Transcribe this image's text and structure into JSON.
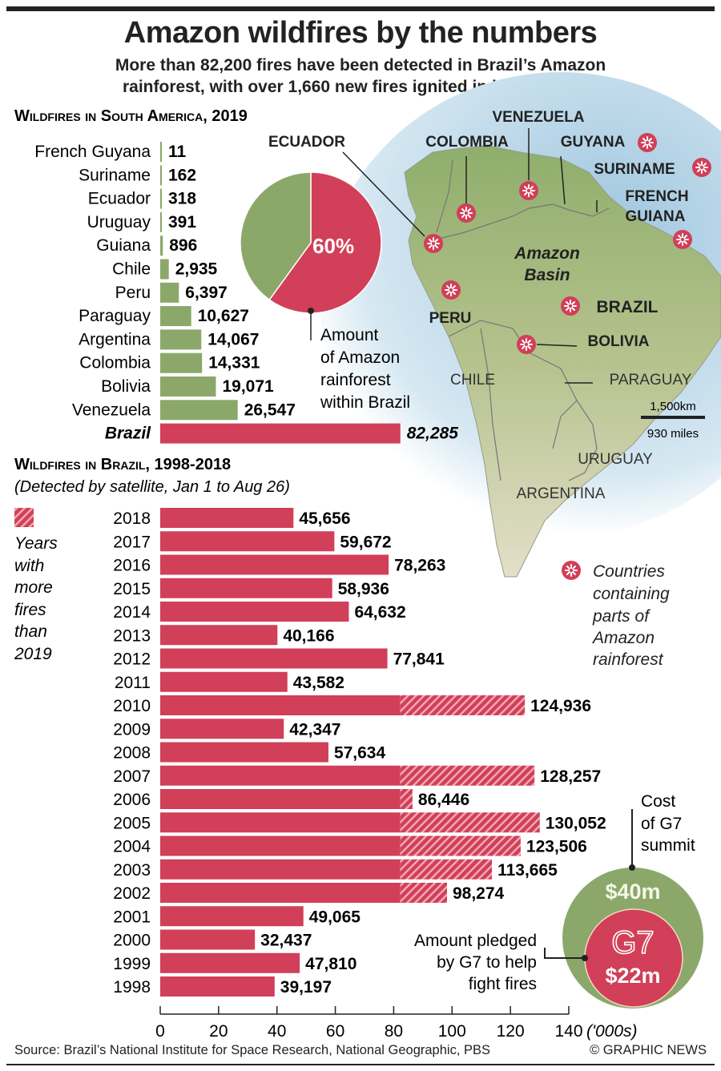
{
  "header": {
    "title": "Amazon wildfires by the numbers",
    "subtitle_line1": "More than 82,200 fires have been detected in Brazil’s Amazon",
    "subtitle_line2": "rainforest, with over 1,660 new fires ignited in just two days"
  },
  "colors": {
    "red": "#d13f58",
    "green": "#8ba86a",
    "ocean": "#bcd9ea",
    "land": "#a9bf84"
  },
  "chart_data": [
    {
      "type": "bar",
      "orientation": "horizontal",
      "title": "Wildfires in South America, 2019",
      "categories": [
        "French Guyana",
        "Suriname",
        "Ecuador",
        "Uruguay",
        "Guiana",
        "Chile",
        "Peru",
        "Paraguay",
        "Argentina",
        "Colombia",
        "Bolivia",
        "Venezuela",
        "Brazil"
      ],
      "values": [
        11,
        162,
        318,
        391,
        896,
        2935,
        6397,
        10627,
        14067,
        14331,
        19071,
        26547,
        82285
      ],
      "labels": [
        "11",
        "162",
        "318",
        "391",
        "896",
        "2,935",
        "6,397",
        "10,627",
        "14,067",
        "14,331",
        "19,071",
        "26,547",
        "82,285"
      ],
      "highlight": "Brazil"
    },
    {
      "type": "pie",
      "slices": [
        {
          "label": "60%",
          "value": 60,
          "color": "#d13f58"
        },
        {
          "label": "",
          "value": 40,
          "color": "#8ba86a"
        }
      ],
      "annotation": [
        "Amount",
        "of Amazon",
        "rainforest",
        "within Brazil"
      ]
    },
    {
      "type": "bar",
      "orientation": "horizontal",
      "title": "Wildfires in Brazil, 1998-2018",
      "subtitle": "(Detected by satellite, Jan 1 to Aug 26)",
      "categories": [
        "2018",
        "2017",
        "2016",
        "2015",
        "2014",
        "2013",
        "2012",
        "2011",
        "2010",
        "2009",
        "2008",
        "2007",
        "2006",
        "2005",
        "2004",
        "2003",
        "2002",
        "2001",
        "2000",
        "1999",
        "1998"
      ],
      "values": [
        45656,
        59672,
        78263,
        58936,
        64632,
        40166,
        77841,
        43582,
        124936,
        42347,
        57634,
        128257,
        86446,
        130052,
        123506,
        113665,
        98274,
        49065,
        32437,
        47810,
        39197
      ],
      "labels": [
        "45,656",
        "59,672",
        "78,263",
        "58,936",
        "64,632",
        "40,166",
        "77,841",
        "43,582",
        "124,936",
        "42,347",
        "57,634",
        "128,257",
        "86,446",
        "130,052",
        "123,506",
        "113,665",
        "98,274",
        "49,065",
        "32,437",
        "47,810",
        "39,197"
      ],
      "hatch_above": 82285,
      "legend": [
        "Years",
        "with",
        "more",
        "fires",
        "than",
        "2019"
      ],
      "x_ticks": [
        "0",
        "20",
        "40",
        "60",
        "80",
        "100",
        "120",
        "140"
      ],
      "x_unit": "('000s)",
      "xlim": [
        0,
        140
      ]
    },
    {
      "type": "nested-circles",
      "outer": {
        "value": "$40m",
        "label": [
          "Cost",
          "of G7",
          "summit"
        ]
      },
      "inner": {
        "value": "$22m",
        "logo": "G7",
        "label": [
          "Amount pledged",
          "by G7 to help",
          "fight fires"
        ]
      }
    }
  ],
  "map": {
    "labels": {
      "venezuela": "VENEZUELA",
      "ecuador": "ECUADOR",
      "colombia": "COLOMBIA",
      "guyana": "GUYANA",
      "suriname": "SURINAME",
      "french_guiana_1": "FRENCH",
      "french_guiana_2": "GUIANA",
      "amazon_1": "Amazon",
      "amazon_2": "Basin",
      "peru": "PERU",
      "brazil": "BRAZIL",
      "bolivia": "BOLIVIA",
      "chile": "CHILE",
      "paraguay": "PARAGUAY",
      "uruguay": "URUGUAY",
      "argentina": "ARGENTINA"
    },
    "scale_km": "1,500km",
    "scale_mi": "930 miles",
    "legend": [
      "Countries",
      "containing",
      "parts of",
      "Amazon",
      "rainforest"
    ],
    "marker_icon": "fire-marker-icon"
  },
  "footer": {
    "source": "Source: Brazil’s National Institute for Space Research, National Geographic, PBS",
    "credit": "© GRAPHIC NEWS"
  }
}
